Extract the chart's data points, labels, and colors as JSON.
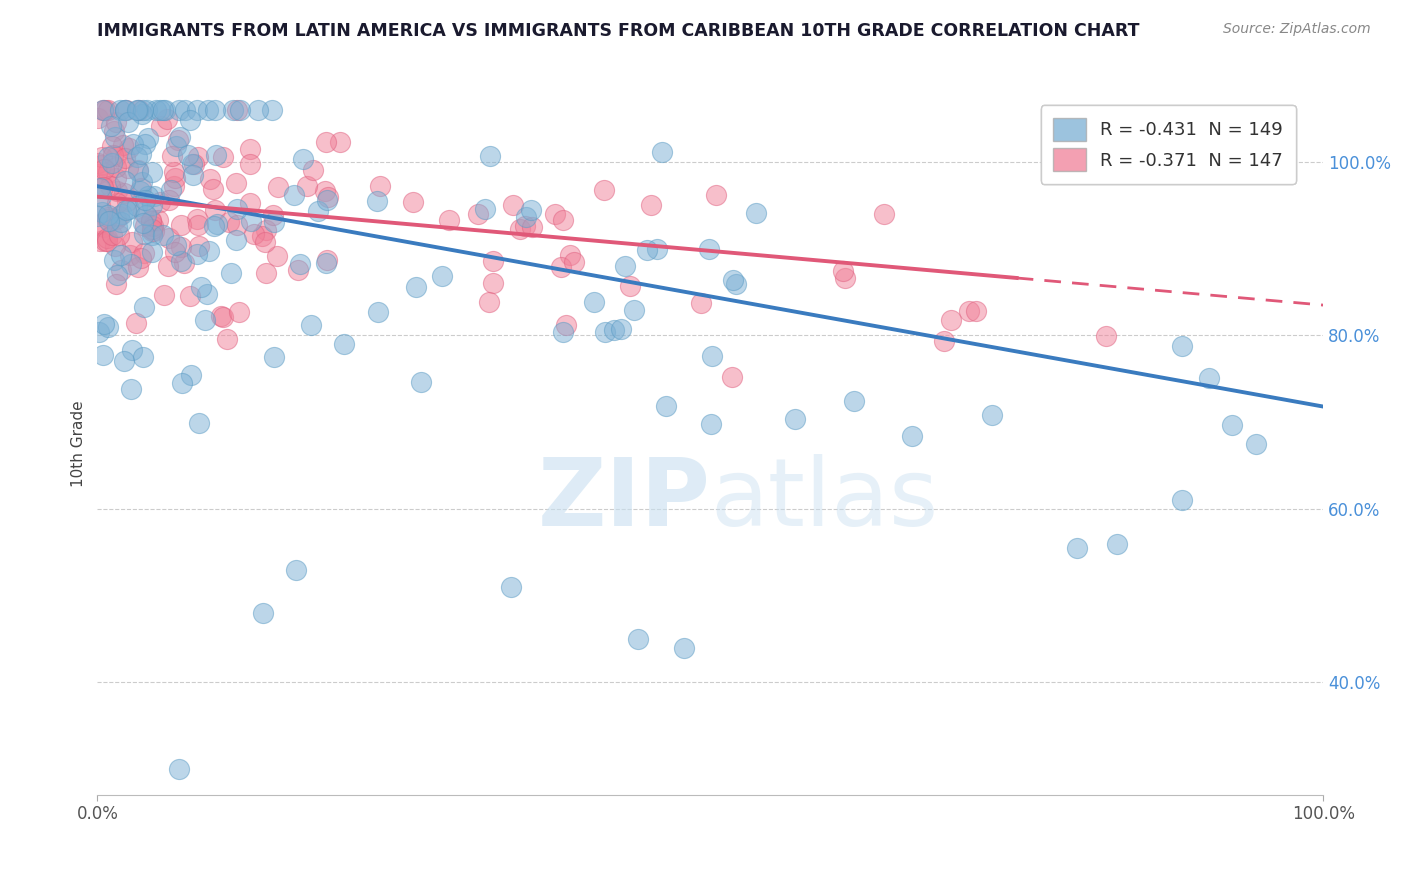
{
  "title": "IMMIGRANTS FROM LATIN AMERICA VS IMMIGRANTS FROM CARIBBEAN 10TH GRADE CORRELATION CHART",
  "source": "Source: ZipAtlas.com",
  "ylabel": "10th Grade",
  "series1_color": "#7bafd4",
  "series2_color": "#f08098",
  "series1_edge": "#5a9bc4",
  "series2_edge": "#e06080",
  "line1_color": "#3a7bbf",
  "line2_color": "#e05878",
  "watermark_color": "#c8dff0",
  "background_color": "#ffffff",
  "grid_color": "#cccccc",
  "R1": -0.431,
  "N1": 149,
  "R2": -0.371,
  "N2": 147,
  "line1_y0": 0.972,
  "line1_y1": 0.718,
  "line2_y0": 0.96,
  "line2_y1": 0.835,
  "line2_solid_end": 0.75,
  "xlim": [
    0.0,
    1.0
  ],
  "ylim": [
    0.27,
    1.08
  ],
  "yticks": [
    0.4,
    0.6,
    0.8,
    1.0
  ],
  "ytick_labels": [
    "40.0%",
    "60.0%",
    "80.0%",
    "100.0%"
  ],
  "xticks": [
    0.0,
    1.0
  ],
  "xtick_labels": [
    "0.0%",
    "100.0%"
  ]
}
